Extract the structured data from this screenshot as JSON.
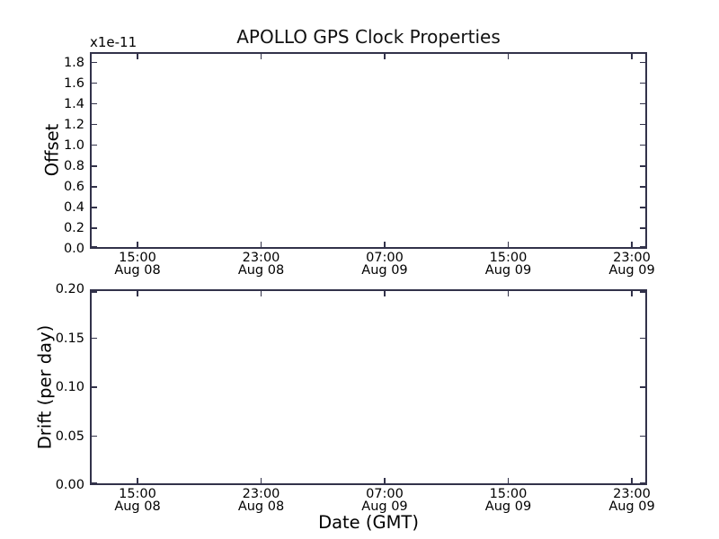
{
  "figure": {
    "background": "#ffffff",
    "spine_color": "#32324a",
    "text_color": "#000000"
  },
  "chart_data": [
    {
      "type": "line",
      "title": "APOLLO GPS Clock Properties",
      "ylabel": "Offset",
      "y_scale_note": "x1e-11",
      "xlabel": "",
      "ylim": [
        0.0,
        1.9
      ],
      "yticks": {
        "values": [
          0.0,
          0.2,
          0.4,
          0.6,
          0.8,
          1.0,
          1.2,
          1.4,
          1.6,
          1.8
        ],
        "labels": [
          "0.0",
          "0.2",
          "0.4",
          "0.6",
          "0.8",
          "1.0",
          "1.2",
          "1.4",
          "1.6",
          "1.8"
        ]
      },
      "xticks": [
        {
          "frac": 0.0855,
          "time": "15:00",
          "date": "Aug 08"
        },
        {
          "frac": 0.3073,
          "time": "23:00",
          "date": "Aug 08"
        },
        {
          "frac": 0.529,
          "time": "07:00",
          "date": "Aug 09"
        },
        {
          "frac": 0.7508,
          "time": "15:00",
          "date": "Aug 09"
        },
        {
          "frac": 0.9726,
          "time": "23:00",
          "date": "Aug 09"
        }
      ],
      "grid": false,
      "legend": null,
      "series": []
    },
    {
      "type": "line",
      "title": "",
      "ylabel": "Drift (per day)",
      "xlabel": "Date (GMT)",
      "ylim": [
        0.0,
        0.2
      ],
      "yticks": {
        "values": [
          0.0,
          0.05,
          0.1,
          0.15,
          0.2
        ],
        "labels": [
          "0.00",
          "0.05",
          "0.10",
          "0.15",
          "0.20"
        ]
      },
      "xticks": [
        {
          "frac": 0.0855,
          "time": "15:00",
          "date": "Aug 08"
        },
        {
          "frac": 0.3073,
          "time": "23:00",
          "date": "Aug 08"
        },
        {
          "frac": 0.529,
          "time": "07:00",
          "date": "Aug 09"
        },
        {
          "frac": 0.7508,
          "time": "15:00",
          "date": "Aug 09"
        },
        {
          "frac": 0.9726,
          "time": "23:00",
          "date": "Aug 09"
        }
      ],
      "grid": false,
      "legend": null,
      "series": []
    }
  ]
}
